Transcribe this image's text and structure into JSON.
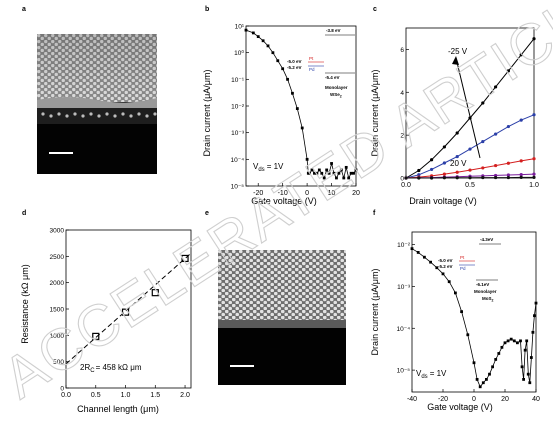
{
  "panels": {
    "a": {
      "letter": "a"
    },
    "b": {
      "letter": "b"
    },
    "c": {
      "letter": "c"
    },
    "d": {
      "letter": "d"
    },
    "e": {
      "letter": "e"
    },
    "f": {
      "letter": "f"
    }
  },
  "watermark": "ACCELERATED ARTICLE PREVIEW",
  "chart_data": [
    {
      "panel": "b",
      "type": "scatter",
      "xlabel": "Gate voltage (V)",
      "ylabel": "Drain current (μA/μm)",
      "y_scale": "log",
      "xlim": [
        -25,
        20
      ],
      "ylim": [
        1e-05,
        10
      ],
      "x_ticks": [
        "-20",
        "-10",
        "0",
        "10",
        "20"
      ],
      "y_ticks": [
        "10⁻⁵",
        "10⁻⁴",
        "10⁻³",
        "10⁻²",
        "10⁻¹",
        "10⁰",
        "10¹"
      ],
      "annotations": {
        "vds": "V",
        "vds_sub": "ds",
        "vds_value": "= 1V",
        "cb_level": "-3.8 eV",
        "pt_level": "-5.0 eV",
        "pt_label": "Pt",
        "pd_level": "-5.2 eV",
        "pd_label": "Pd",
        "vb_level": "-5.4 eV",
        "material_line1": "Monolayer",
        "material_line2": "WSe",
        "material_sub": "2"
      },
      "series": [
        {
          "x": [
            -25,
            -22,
            -20,
            -18,
            -16,
            -14,
            -12,
            -10,
            -8,
            -6,
            -4,
            -2,
            0,
            0.5,
            1,
            2,
            3,
            4,
            5,
            6,
            7,
            8,
            9,
            10,
            11,
            12,
            13,
            14,
            15,
            16,
            17,
            18,
            19,
            20
          ],
          "y": [
            7,
            5.5,
            4,
            2.8,
            1.8,
            1.0,
            0.5,
            0.25,
            0.1,
            0.03,
            0.008,
            0.0015,
            0.0001,
            3e-05,
            3e-05,
            4e-05,
            3e-05,
            3e-05,
            4e-05,
            3e-05,
            2e-05,
            4e-05,
            3e-05,
            7e-05,
            3e-05,
            2e-05,
            3e-05,
            4e-05,
            2e-05,
            5e-05,
            2e-05,
            3e-05,
            3e-05,
            4e-05
          ]
        }
      ]
    },
    {
      "panel": "c",
      "type": "line",
      "xlabel": "Drain voltage (V)",
      "ylabel": "Drain current (μA/μm)",
      "xlim": [
        0,
        1
      ],
      "ylim": [
        0,
        7
      ],
      "x_ticks": [
        "0.0",
        "0.5",
        "1.0"
      ],
      "y_ticks": [
        "0",
        "2",
        "4",
        "6"
      ],
      "annotations": {
        "top_label": "-25 V",
        "bottom_label": "20 V"
      },
      "colors": [
        "#000000",
        "#2b3fa8",
        "#d42020",
        "#7a1e9c",
        "#111111"
      ],
      "series": [
        {
          "gate": "-25 V",
          "x": [
            0,
            0.1,
            0.2,
            0.3,
            0.4,
            0.5,
            0.6,
            0.7,
            0.8,
            0.9,
            1.0
          ],
          "y": [
            0,
            0.35,
            0.85,
            1.45,
            2.1,
            2.8,
            3.5,
            4.25,
            5.0,
            5.75,
            6.5
          ]
        },
        {
          "gate": "",
          "x": [
            0,
            0.1,
            0.2,
            0.3,
            0.4,
            0.5,
            0.6,
            0.7,
            0.8,
            0.9,
            1.0
          ],
          "y": [
            0,
            0.15,
            0.4,
            0.7,
            1.0,
            1.35,
            1.7,
            2.05,
            2.4,
            2.7,
            2.95
          ]
        },
        {
          "gate": "",
          "x": [
            0,
            0.1,
            0.2,
            0.3,
            0.4,
            0.5,
            0.6,
            0.7,
            0.8,
            0.9,
            1.0
          ],
          "y": [
            0,
            0.04,
            0.1,
            0.18,
            0.27,
            0.37,
            0.47,
            0.58,
            0.69,
            0.8,
            0.9
          ]
        },
        {
          "gate": "",
          "x": [
            0,
            0.1,
            0.2,
            0.3,
            0.4,
            0.5,
            0.6,
            0.7,
            0.8,
            0.9,
            1.0
          ],
          "y": [
            0,
            0.01,
            0.02,
            0.04,
            0.06,
            0.08,
            0.1,
            0.12,
            0.14,
            0.16,
            0.18
          ]
        },
        {
          "gate": "20 V",
          "x": [
            0,
            0.1,
            0.2,
            0.3,
            0.4,
            0.5,
            0.6,
            0.7,
            0.8,
            0.9,
            1.0
          ],
          "y": [
            0,
            0,
            0,
            0.01,
            0.01,
            0.01,
            0.02,
            0.02,
            0.02,
            0.03,
            0.03
          ]
        }
      ]
    },
    {
      "panel": "d",
      "type": "scatter",
      "xlabel": "Channel length (μm)",
      "ylabel": "Resistance (kΩ μm)",
      "xlim": [
        0,
        2.1
      ],
      "ylim": [
        0,
        3000
      ],
      "x_ticks": [
        "0.0",
        "0.5",
        "1.0",
        "1.5",
        "2.0"
      ],
      "y_ticks": [
        "0",
        "500",
        "1000",
        "1500",
        "2000",
        "2500",
        "3000"
      ],
      "annotations": {
        "contact": "2R",
        "contact_sub": "C",
        "contact_value": "= 458 kΩ μm"
      },
      "points": {
        "x": [
          0.5,
          1.0,
          1.5,
          2.0
        ],
        "y": [
          980,
          1440,
          1810,
          2460
        ]
      },
      "fit": {
        "slope": 1000,
        "intercept": 458
      }
    },
    {
      "panel": "f",
      "type": "scatter",
      "xlabel": "Gate voltage (V)",
      "ylabel": "Drain current (μA/μm)",
      "y_scale": "log",
      "xlim": [
        -40,
        40
      ],
      "ylim": [
        3e-06,
        0.02
      ],
      "x_ticks": [
        "-40",
        "-20",
        "0",
        "20",
        "40"
      ],
      "y_ticks": [
        "10⁻⁵",
        "10⁻⁴",
        "10⁻³",
        "10⁻²"
      ],
      "annotations": {
        "vds": "V",
        "vds_sub": "ds",
        "vds_value": "= 1V",
        "cb_level": "-4.3eV",
        "pt_level": "-5.0 eV",
        "pt_label": "Pt",
        "pd_level": "-5.2 eV",
        "pd_label": "Pd",
        "vb_level": "-6.1eV",
        "material_line1": "Monolayer",
        "material_line2": "MoS",
        "material_sub": "2"
      },
      "series": [
        {
          "x": [
            -40,
            -36,
            -32,
            -28,
            -24,
            -20,
            -16,
            -12,
            -8,
            -4,
            0,
            2,
            4,
            6,
            8,
            10,
            12,
            14,
            16,
            18,
            20,
            22,
            24,
            26,
            28,
            30,
            31,
            32,
            33,
            34,
            35,
            36,
            37,
            38,
            39,
            40
          ],
          "y": [
            0.008,
            0.0065,
            0.005,
            0.0038,
            0.0028,
            0.002,
            0.0013,
            0.0007,
            0.00025,
            7e-05,
            1.5e-05,
            6e-06,
            4e-06,
            5e-06,
            6e-06,
            8e-06,
            1.2e-05,
            1.8e-05,
            2.5e-05,
            3.5e-05,
            4.5e-05,
            5e-05,
            5.5e-05,
            5e-05,
            4.5e-05,
            5e-05,
            1.2e-05,
            6e-06,
            3e-05,
            5e-05,
            8e-06,
            5e-06,
            2e-05,
            8e-05,
            0.0002,
            0.0004
          ]
        }
      ]
    }
  ]
}
